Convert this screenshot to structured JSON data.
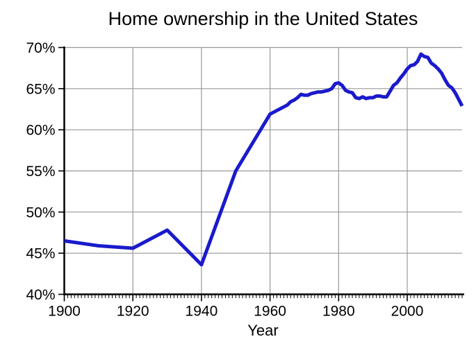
{
  "chart_data": {
    "type": "line",
    "title": "Home ownership in the United States",
    "xlabel": "Year",
    "ylabel": "",
    "x_range": [
      1900,
      2016
    ],
    "y_range": [
      40,
      70
    ],
    "x_major_ticks": [
      1900,
      1920,
      1940,
      1960,
      1980,
      2000
    ],
    "x_minor_tick_step": 1,
    "y_major_ticks": [
      40,
      45,
      50,
      55,
      60,
      65,
      70
    ],
    "y_tick_suffix": "%",
    "grid_x_lines": [
      1920,
      1940,
      1960,
      1980,
      2000
    ],
    "grid_y_lines": [
      45,
      50,
      55,
      60,
      65,
      70
    ],
    "legend": "none",
    "colors": {
      "line": "#1a1acc",
      "grid": "#999999",
      "axis": "#000000",
      "text": "#000000",
      "background": "#ffffff"
    },
    "line_width": 5,
    "points": [
      [
        1900,
        46.5
      ],
      [
        1910,
        45.9
      ],
      [
        1920,
        45.6
      ],
      [
        1930,
        47.8
      ],
      [
        1940,
        43.6
      ],
      [
        1950,
        55.0
      ],
      [
        1960,
        61.9
      ],
      [
        1965,
        63.0
      ],
      [
        1966,
        63.4
      ],
      [
        1967,
        63.6
      ],
      [
        1968,
        63.9
      ],
      [
        1969,
        64.3
      ],
      [
        1970,
        64.2
      ],
      [
        1971,
        64.2
      ],
      [
        1972,
        64.4
      ],
      [
        1973,
        64.5
      ],
      [
        1974,
        64.6
      ],
      [
        1975,
        64.6
      ],
      [
        1976,
        64.7
      ],
      [
        1977,
        64.8
      ],
      [
        1978,
        65.0
      ],
      [
        1979,
        65.6
      ],
      [
        1980,
        65.7
      ],
      [
        1981,
        65.4
      ],
      [
        1982,
        64.8
      ],
      [
        1983,
        64.6
      ],
      [
        1984,
        64.5
      ],
      [
        1985,
        63.9
      ],
      [
        1986,
        63.8
      ],
      [
        1987,
        64.0
      ],
      [
        1988,
        63.8
      ],
      [
        1989,
        63.9
      ],
      [
        1990,
        63.9
      ],
      [
        1991,
        64.1
      ],
      [
        1992,
        64.1
      ],
      [
        1993,
        64.0
      ],
      [
        1994,
        64.0
      ],
      [
        1995,
        64.7
      ],
      [
        1996,
        65.4
      ],
      [
        1997,
        65.7
      ],
      [
        1998,
        66.3
      ],
      [
        1999,
        66.8
      ],
      [
        2000,
        67.4
      ],
      [
        2001,
        67.8
      ],
      [
        2002,
        67.9
      ],
      [
        2003,
        68.3
      ],
      [
        2004,
        69.2
      ],
      [
        2005,
        68.9
      ],
      [
        2006,
        68.8
      ],
      [
        2007,
        68.1
      ],
      [
        2008,
        67.8
      ],
      [
        2009,
        67.4
      ],
      [
        2010,
        66.9
      ],
      [
        2011,
        66.1
      ],
      [
        2012,
        65.4
      ],
      [
        2013,
        65.1
      ],
      [
        2014,
        64.5
      ],
      [
        2015,
        63.7
      ],
      [
        2016,
        62.9
      ]
    ]
  }
}
